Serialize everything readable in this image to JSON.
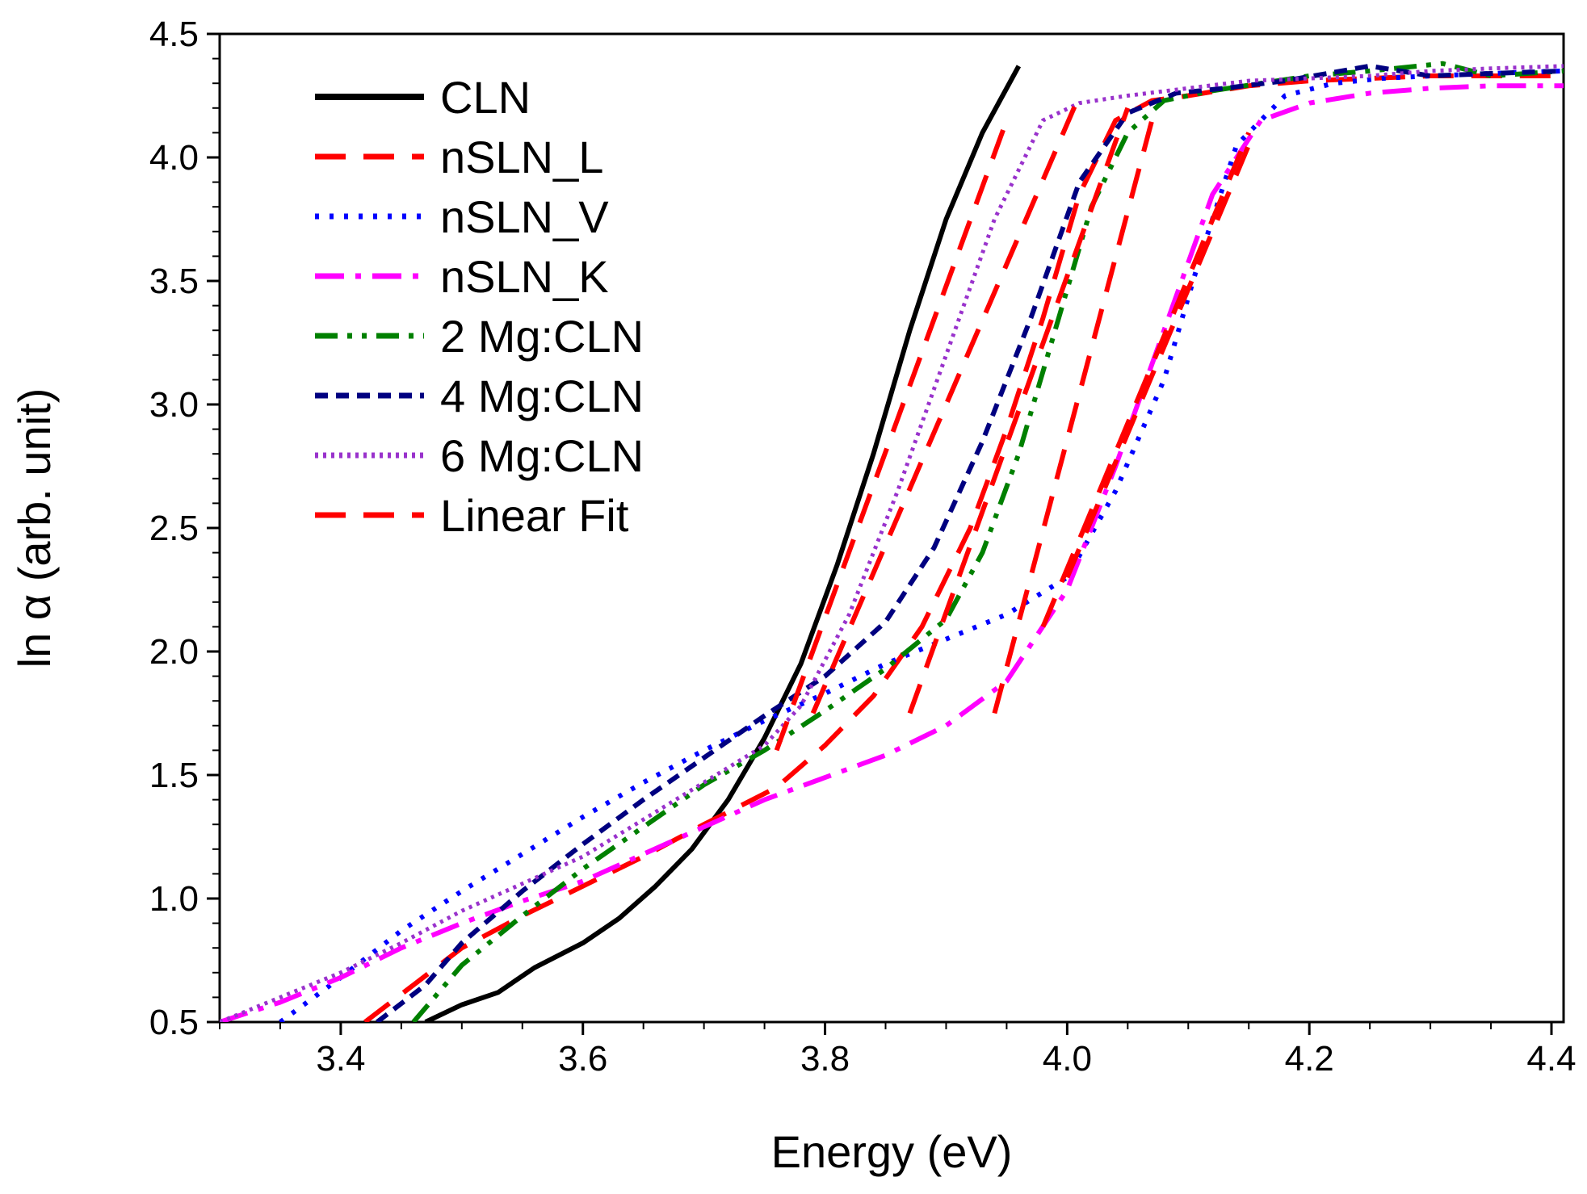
{
  "chart_data": {
    "type": "line",
    "title": "",
    "xlabel": "Energy (eV)",
    "ylabel": "ln α (arb. unit)",
    "xlim": [
      3.3,
      4.41
    ],
    "ylim": [
      0.5,
      4.5
    ],
    "xticks": [
      "3.4",
      "3.6",
      "3.8",
      "4.0",
      "4.2",
      "4.4"
    ],
    "xtick_values": [
      3.4,
      3.6,
      3.8,
      4.0,
      4.2,
      4.4
    ],
    "yticks": [
      "0.5",
      "1.0",
      "1.5",
      "2.0",
      "2.5",
      "3.0",
      "3.5",
      "4.0",
      "4.5"
    ],
    "ytick_values": [
      0.5,
      1.0,
      1.5,
      2.0,
      2.5,
      3.0,
      3.5,
      4.0,
      4.5
    ],
    "legend_position": "top-left",
    "grid": false,
    "series": [
      {
        "name": "CLN",
        "color": "#000000",
        "style": "solid",
        "x": [
          3.47,
          3.5,
          3.53,
          3.56,
          3.6,
          3.63,
          3.66,
          3.69,
          3.72,
          3.75,
          3.78,
          3.81,
          3.84,
          3.87,
          3.9,
          3.93,
          3.96
        ],
        "y": [
          0.5,
          0.57,
          0.62,
          0.72,
          0.82,
          0.92,
          1.05,
          1.2,
          1.4,
          1.65,
          1.95,
          2.35,
          2.8,
          3.3,
          3.75,
          4.1,
          4.37
        ]
      },
      {
        "name": "nSLN_L",
        "color": "#ff0000",
        "style": "long-dash",
        "x": [
          3.42,
          3.46,
          3.5,
          3.55,
          3.6,
          3.65,
          3.7,
          3.76,
          3.8,
          3.84,
          3.88,
          3.92,
          3.95,
          3.98,
          4.01,
          4.04,
          4.07,
          4.1,
          4.15,
          4.2,
          4.25,
          4.3,
          4.35,
          4.41
        ],
        "y": [
          0.5,
          0.65,
          0.8,
          0.93,
          1.05,
          1.17,
          1.3,
          1.45,
          1.62,
          1.82,
          2.1,
          2.5,
          2.9,
          3.35,
          3.85,
          4.15,
          4.23,
          4.25,
          4.29,
          4.31,
          4.32,
          4.33,
          4.33,
          4.33
        ]
      },
      {
        "name": "nSLN_V",
        "color": "#0000ff",
        "style": "dotted",
        "x": [
          3.35,
          3.4,
          3.45,
          3.5,
          3.55,
          3.6,
          3.65,
          3.7,
          3.75,
          3.8,
          3.85,
          3.9,
          3.95,
          4.0,
          4.04,
          4.08,
          4.11,
          4.14,
          4.18,
          4.22,
          4.26,
          4.3,
          4.35,
          4.41
        ],
        "y": [
          0.5,
          0.68,
          0.87,
          1.03,
          1.18,
          1.33,
          1.47,
          1.6,
          1.72,
          1.83,
          1.95,
          2.05,
          2.15,
          2.3,
          2.65,
          3.1,
          3.6,
          4.05,
          4.25,
          4.3,
          4.32,
          4.33,
          4.34,
          4.35
        ]
      },
      {
        "name": "nSLN_K",
        "color": "#ff00ff",
        "style": "dash-dot",
        "x": [
          3.3,
          3.35,
          3.4,
          3.45,
          3.5,
          3.55,
          3.6,
          3.65,
          3.7,
          3.75,
          3.8,
          3.85,
          3.9,
          3.95,
          4.0,
          4.04,
          4.08,
          4.12,
          4.16,
          4.2,
          4.25,
          4.3,
          4.35,
          4.41
        ],
        "y": [
          0.5,
          0.58,
          0.68,
          0.8,
          0.9,
          0.99,
          1.07,
          1.18,
          1.29,
          1.4,
          1.49,
          1.58,
          1.7,
          1.88,
          2.25,
          2.75,
          3.3,
          3.85,
          4.15,
          4.22,
          4.26,
          4.28,
          4.29,
          4.29
        ]
      },
      {
        "name": "2 Mg:CLN",
        "color": "#008000",
        "style": "dash-dot-dot",
        "x": [
          3.46,
          3.5,
          3.55,
          3.6,
          3.65,
          3.7,
          3.75,
          3.8,
          3.85,
          3.9,
          3.93,
          3.96,
          3.99,
          4.02,
          4.05,
          4.08,
          4.12,
          4.16,
          4.2,
          4.25,
          4.31,
          4.35,
          4.41
        ],
        "y": [
          0.5,
          0.73,
          0.93,
          1.12,
          1.29,
          1.46,
          1.6,
          1.76,
          1.93,
          2.13,
          2.4,
          2.8,
          3.3,
          3.8,
          4.1,
          4.23,
          4.27,
          4.3,
          4.33,
          4.35,
          4.38,
          4.33,
          4.35
        ]
      },
      {
        "name": "4 Mg:CLN",
        "color": "#000080",
        "style": "short-dash",
        "x": [
          3.43,
          3.47,
          3.5,
          3.55,
          3.6,
          3.65,
          3.7,
          3.75,
          3.8,
          3.85,
          3.89,
          3.93,
          3.97,
          4.01,
          4.05,
          4.09,
          4.13,
          4.18,
          4.25,
          4.3,
          4.35,
          4.41
        ],
        "y": [
          0.5,
          0.65,
          0.82,
          1.03,
          1.22,
          1.4,
          1.57,
          1.74,
          1.9,
          2.12,
          2.42,
          2.85,
          3.35,
          3.9,
          4.18,
          4.26,
          4.28,
          4.31,
          4.37,
          4.33,
          4.34,
          4.35
        ]
      },
      {
        "name": "6 Mg:CLN",
        "color": "#9932cc",
        "style": "fine-dot",
        "x": [
          3.3,
          3.35,
          3.4,
          3.45,
          3.5,
          3.55,
          3.6,
          3.65,
          3.7,
          3.75,
          3.78,
          3.82,
          3.86,
          3.9,
          3.94,
          3.98,
          4.01,
          4.05,
          4.1,
          4.15,
          4.2,
          4.25,
          4.3,
          4.35,
          4.41
        ],
        "y": [
          0.5,
          0.6,
          0.7,
          0.82,
          0.95,
          1.06,
          1.17,
          1.32,
          1.47,
          1.62,
          1.78,
          2.15,
          2.65,
          3.2,
          3.75,
          4.15,
          4.22,
          4.25,
          4.28,
          4.31,
          4.32,
          4.33,
          4.35,
          4.36,
          4.37
        ]
      },
      {
        "name": "Linear Fit",
        "color": "#ff0000",
        "style": "long-dash",
        "segments": [
          {
            "x": [
              3.76,
              3.95
            ],
            "y": [
              1.6,
              4.15
            ]
          },
          {
            "x": [
              3.79,
              4.01
            ],
            "y": [
              1.75,
              4.25
            ]
          },
          {
            "x": [
              3.87,
              4.05
            ],
            "y": [
              1.75,
              4.2
            ]
          },
          {
            "x": [
              3.94,
              4.07
            ],
            "y": [
              1.75,
              4.15
            ]
          },
          {
            "x": [
              3.98,
              4.15
            ],
            "y": [
              2.1,
              4.1
            ]
          },
          {
            "x": [
              4.0,
              4.15
            ],
            "y": [
              2.3,
              4.05
            ]
          }
        ]
      }
    ]
  }
}
